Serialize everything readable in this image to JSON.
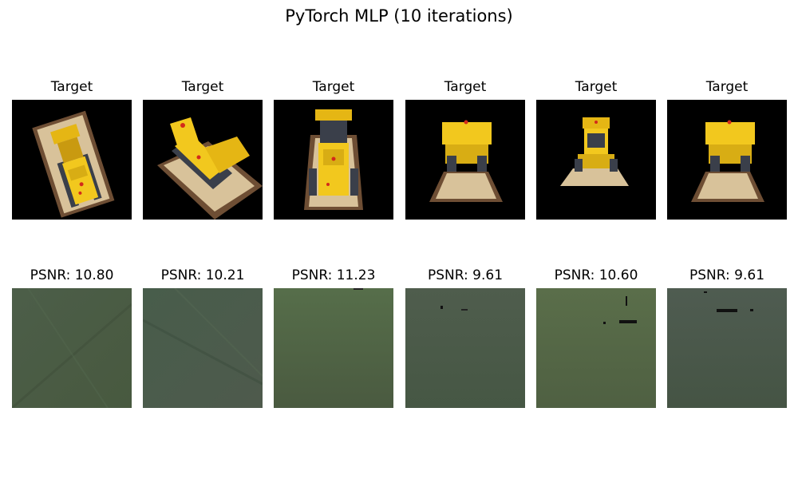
{
  "figure": {
    "title": "PyTorch MLP (10 iterations)",
    "targets": [
      {
        "label": "Target",
        "view": "overhead-rotated-left"
      },
      {
        "label": "Target",
        "view": "diagonal-rotated-right"
      },
      {
        "label": "Target",
        "view": "front-raised-bucket"
      },
      {
        "label": "Target",
        "view": "front-low"
      },
      {
        "label": "Target",
        "view": "front-distant"
      },
      {
        "label": "Target",
        "view": "front-low"
      }
    ],
    "predictions": [
      {
        "label": "PSNR: 10.80",
        "psnr": 10.8
      },
      {
        "label": "PSNR: 10.21",
        "psnr": 10.21
      },
      {
        "label": "PSNR: 11.23",
        "psnr": 11.23
      },
      {
        "label": "PSNR: 9.61",
        "psnr": 9.61
      },
      {
        "label": "PSNR: 10.60",
        "psnr": 10.6
      },
      {
        "label": "PSNR: 9.61",
        "psnr": 9.61
      }
    ],
    "colors": {
      "target_background": "#000000",
      "lego_yellow": "#f2c81e",
      "lego_base": "#d8c29a",
      "base_edge": "#7a5a3a",
      "prediction_tint": "#4b5f44"
    }
  }
}
